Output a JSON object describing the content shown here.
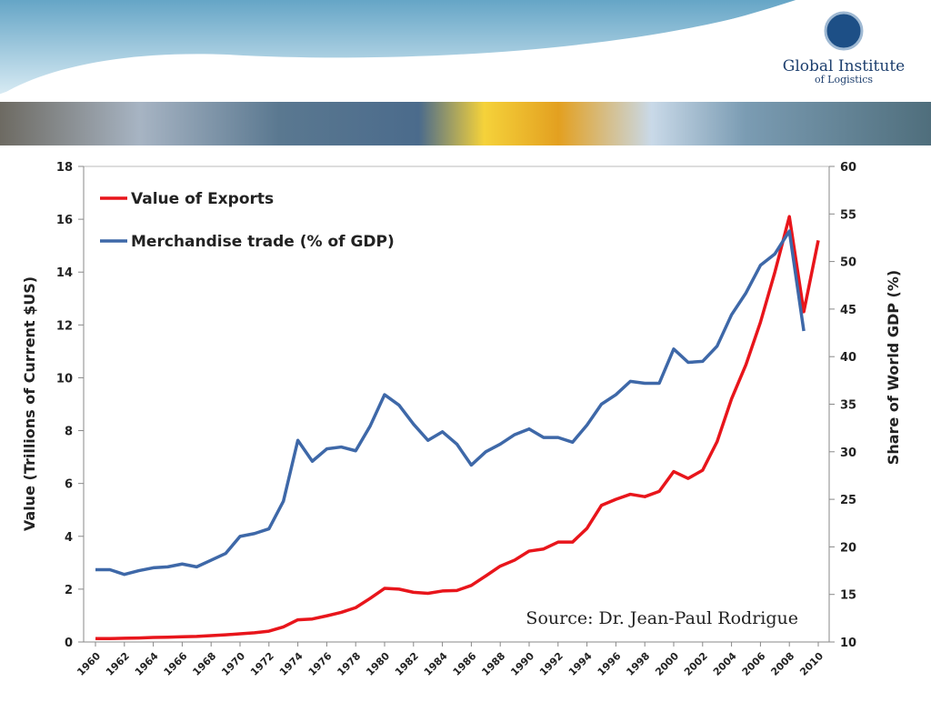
{
  "header": {
    "brand": "Global Institute",
    "brand_sub": "of Logistics"
  },
  "chart_data": {
    "type": "line",
    "y_label": "Value (Trillions of Current $US)",
    "y2_label": "Share of World GDP (%)",
    "annotation": "Source: Dr. Jean-Paul Rodrigue",
    "x": [
      1960,
      1961,
      1962,
      1963,
      1964,
      1965,
      1966,
      1967,
      1968,
      1969,
      1970,
      1971,
      1972,
      1973,
      1974,
      1975,
      1976,
      1977,
      1978,
      1979,
      1980,
      1981,
      1982,
      1983,
      1984,
      1985,
      1986,
      1987,
      1988,
      1989,
      1990,
      1991,
      1992,
      1993,
      1994,
      1995,
      1996,
      1997,
      1998,
      1999,
      2000,
      2001,
      2002,
      2003,
      2004,
      2005,
      2006,
      2007,
      2008,
      2009,
      2010
    ],
    "xlim": [
      1960,
      2010
    ],
    "xticks": [
      1960,
      1962,
      1964,
      1966,
      1968,
      1970,
      1972,
      1974,
      1976,
      1978,
      1980,
      1982,
      1984,
      1986,
      1988,
      1990,
      1992,
      1994,
      1996,
      1998,
      2000,
      2002,
      2004,
      2006,
      2008,
      2010
    ],
    "ylim": [
      0,
      18
    ],
    "yticks": [
      0,
      2,
      4,
      6,
      8,
      10,
      12,
      14,
      16,
      18
    ],
    "y2lim": [
      10,
      60
    ],
    "y2ticks": [
      10,
      15,
      20,
      25,
      30,
      35,
      40,
      45,
      50,
      55,
      60
    ],
    "legend": "upper left",
    "series": [
      {
        "name": "Value of Exports",
        "color": "#e8151b",
        "axis": "y",
        "values": [
          0.13,
          0.13,
          0.14,
          0.15,
          0.17,
          0.18,
          0.2,
          0.21,
          0.24,
          0.27,
          0.31,
          0.35,
          0.41,
          0.57,
          0.84,
          0.87,
          0.99,
          1.12,
          1.3,
          1.65,
          2.03,
          2.0,
          1.88,
          1.84,
          1.93,
          1.95,
          2.14,
          2.5,
          2.87,
          3.1,
          3.44,
          3.52,
          3.78,
          3.78,
          4.3,
          5.17,
          5.4,
          5.59,
          5.5,
          5.7,
          6.45,
          6.19,
          6.5,
          7.58,
          9.2,
          10.5,
          12.1,
          14.0,
          16.1,
          12.5,
          15.2
        ]
      },
      {
        "name": "Merchandise trade (% of GDP)",
        "color": "#3e68a8",
        "axis": "y2",
        "values": [
          17.6,
          17.6,
          17.1,
          17.5,
          17.8,
          17.9,
          18.2,
          17.9,
          18.6,
          19.3,
          21.1,
          21.4,
          21.9,
          24.8,
          31.2,
          29.0,
          30.3,
          30.5,
          30.1,
          32.7,
          36.0,
          34.9,
          32.9,
          31.2,
          32.1,
          30.8,
          28.6,
          30.0,
          30.8,
          31.8,
          32.4,
          31.5,
          31.5,
          31.0,
          32.8,
          35.0,
          36.0,
          37.4,
          37.2,
          37.2,
          40.8,
          39.4,
          39.5,
          41.1,
          44.4,
          46.7,
          49.6,
          50.8,
          53.2,
          42.7,
          null
        ]
      }
    ]
  }
}
